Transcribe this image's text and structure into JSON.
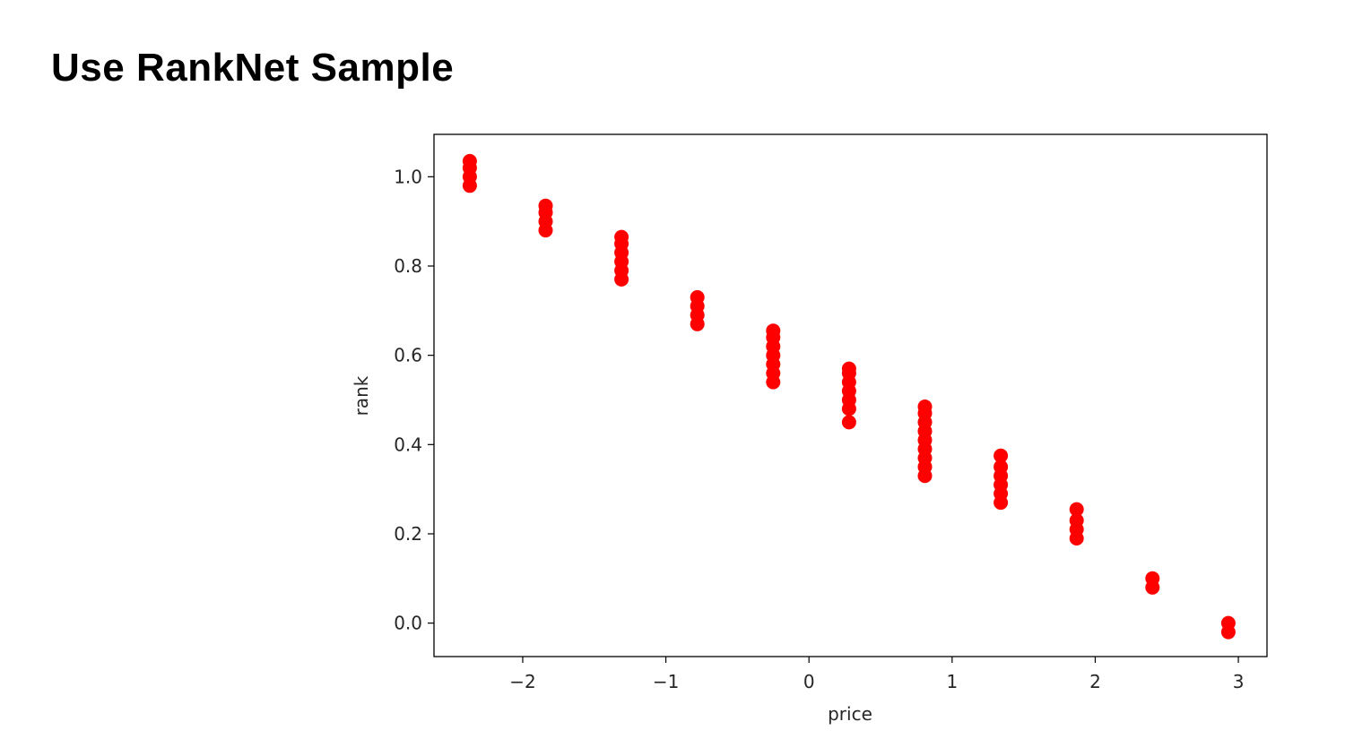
{
  "slide": {
    "title": "Use RankNet Sample"
  },
  "chart_data": {
    "type": "scatter",
    "xlabel": "price",
    "ylabel": "rank",
    "xlim": [
      -2.62,
      3.2
    ],
    "ylim": [
      -0.075,
      1.095
    ],
    "xticks": [
      {
        "value": -2,
        "label": "−2"
      },
      {
        "value": -1,
        "label": "−1"
      },
      {
        "value": 0,
        "label": "0"
      },
      {
        "value": 1,
        "label": "1"
      },
      {
        "value": 2,
        "label": "2"
      },
      {
        "value": 3,
        "label": "3"
      }
    ],
    "yticks": [
      {
        "value": 0.0,
        "label": "0.0"
      },
      {
        "value": 0.2,
        "label": "0.2"
      },
      {
        "value": 0.4,
        "label": "0.4"
      },
      {
        "value": 0.6,
        "label": "0.6"
      },
      {
        "value": 0.8,
        "label": "0.8"
      },
      {
        "value": 1.0,
        "label": "1.0"
      }
    ],
    "grid": false,
    "marker_color": "#ff0000",
    "series": [
      {
        "points": [
          {
            "x": -2.37,
            "y": 0.98
          },
          {
            "x": -2.37,
            "y": 1.0
          },
          {
            "x": -2.37,
            "y": 1.02
          },
          {
            "x": -2.37,
            "y": 1.035
          },
          {
            "x": -1.84,
            "y": 0.88
          },
          {
            "x": -1.84,
            "y": 0.9
          },
          {
            "x": -1.84,
            "y": 0.92
          },
          {
            "x": -1.84,
            "y": 0.935
          },
          {
            "x": -1.31,
            "y": 0.77
          },
          {
            "x": -1.31,
            "y": 0.79
          },
          {
            "x": -1.31,
            "y": 0.81
          },
          {
            "x": -1.31,
            "y": 0.83
          },
          {
            "x": -1.31,
            "y": 0.85
          },
          {
            "x": -1.31,
            "y": 0.865
          },
          {
            "x": -0.78,
            "y": 0.67
          },
          {
            "x": -0.78,
            "y": 0.69
          },
          {
            "x": -0.78,
            "y": 0.71
          },
          {
            "x": -0.78,
            "y": 0.73
          },
          {
            "x": -0.25,
            "y": 0.54
          },
          {
            "x": -0.25,
            "y": 0.56
          },
          {
            "x": -0.25,
            "y": 0.58
          },
          {
            "x": -0.25,
            "y": 0.6
          },
          {
            "x": -0.25,
            "y": 0.62
          },
          {
            "x": -0.25,
            "y": 0.64
          },
          {
            "x": -0.25,
            "y": 0.655
          },
          {
            "x": 0.28,
            "y": 0.45
          },
          {
            "x": 0.28,
            "y": 0.48
          },
          {
            "x": 0.28,
            "y": 0.5
          },
          {
            "x": 0.28,
            "y": 0.52
          },
          {
            "x": 0.28,
            "y": 0.54
          },
          {
            "x": 0.28,
            "y": 0.56
          },
          {
            "x": 0.28,
            "y": 0.57
          },
          {
            "x": 0.81,
            "y": 0.33
          },
          {
            "x": 0.81,
            "y": 0.35
          },
          {
            "x": 0.81,
            "y": 0.37
          },
          {
            "x": 0.81,
            "y": 0.39
          },
          {
            "x": 0.81,
            "y": 0.41
          },
          {
            "x": 0.81,
            "y": 0.43
          },
          {
            "x": 0.81,
            "y": 0.45
          },
          {
            "x": 0.81,
            "y": 0.47
          },
          {
            "x": 0.81,
            "y": 0.485
          },
          {
            "x": 1.34,
            "y": 0.27
          },
          {
            "x": 1.34,
            "y": 0.29
          },
          {
            "x": 1.34,
            "y": 0.31
          },
          {
            "x": 1.34,
            "y": 0.33
          },
          {
            "x": 1.34,
            "y": 0.35
          },
          {
            "x": 1.34,
            "y": 0.375
          },
          {
            "x": 1.87,
            "y": 0.19
          },
          {
            "x": 1.87,
            "y": 0.21
          },
          {
            "x": 1.87,
            "y": 0.23
          },
          {
            "x": 1.87,
            "y": 0.255
          },
          {
            "x": 2.4,
            "y": 0.08
          },
          {
            "x": 2.4,
            "y": 0.1
          },
          {
            "x": 2.93,
            "y": -0.02
          },
          {
            "x": 2.93,
            "y": 0.0
          }
        ]
      }
    ]
  }
}
